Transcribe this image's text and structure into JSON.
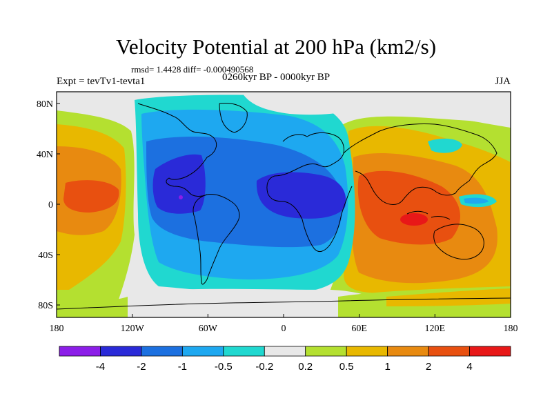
{
  "title": "Velocity Potential at 200 hPa (km2/s)",
  "stats": "rmsd= 1.4428 diff= -0.000490568",
  "period": "0260kyr BP - 0000kyr BP",
  "experiment": "Expt = tevTv1-tevta1",
  "season": "JJA",
  "axes": {
    "x_ticks": [
      "180",
      "120W",
      "60W",
      "0",
      "60E",
      "120E",
      "180"
    ],
    "y_ticks": [
      "80N",
      "40N",
      "0",
      "40S",
      "80S"
    ]
  },
  "colorbar": {
    "labels": [
      "-4",
      "-2",
      "-1",
      "-0.5",
      "-0.2",
      "0.2",
      "0.5",
      "1",
      "2",
      "4"
    ],
    "colors": [
      "#8c1ee8",
      "#2a2ad8",
      "#1c70e0",
      "#1ea8f0",
      "#20d8d0",
      "#e8e8e8",
      "#b4e030",
      "#e8b800",
      "#e88a10",
      "#e85010",
      "#e81818"
    ]
  }
}
